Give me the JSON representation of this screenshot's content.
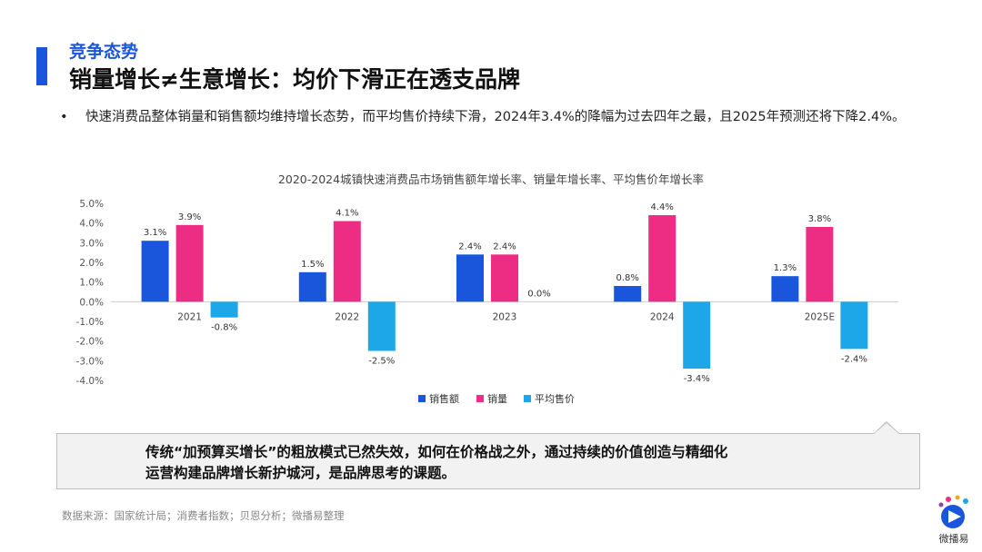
{
  "header": {
    "section": "竞争态势",
    "title": "销量增长≠生意增长：均价下滑正在透支品牌"
  },
  "bullet": {
    "marker": "•",
    "text": "快速消费品整体销量和销售额均维持增长态势，而平均售价持续下滑，2024年3.4%的降幅为过去四年之最，且2025年预测还将下降2.4%。"
  },
  "chart_data": {
    "type": "bar",
    "title": "2020-2024城镇快速消费品市场销售额年增长率、销量年增长率、平均售价年增长率",
    "categories": [
      "2021",
      "2022",
      "2023",
      "2024",
      "2025E"
    ],
    "series": [
      {
        "name": "销售额",
        "color": "#1a56db",
        "values": [
          3.1,
          1.5,
          2.4,
          0.8,
          1.3
        ],
        "labels": [
          "3.1%",
          "1.5%",
          "2.4%",
          "0.8%",
          "1.3%"
        ]
      },
      {
        "name": "销量",
        "color": "#ec2d83",
        "values": [
          3.9,
          4.1,
          2.4,
          4.4,
          3.8
        ],
        "labels": [
          "3.9%",
          "4.1%",
          "2.4%",
          "4.4%",
          "3.8%"
        ]
      },
      {
        "name": "平均售价",
        "color": "#1ea7e8",
        "values": [
          -0.8,
          -2.5,
          0.0,
          -3.4,
          -2.4
        ],
        "labels": [
          "-0.8%",
          "-2.5%",
          "0.0%",
          "-3.4%",
          "-2.4%"
        ]
      }
    ],
    "yticks": [
      "5.0%",
      "4.0%",
      "3.0%",
      "2.0%",
      "1.0%",
      "0.0%",
      "-1.0%",
      "-2.0%",
      "-3.0%",
      "-4.0%"
    ],
    "ylim": [
      -4,
      5
    ],
    "grid": false,
    "legend_position": "bottom"
  },
  "callout": {
    "line1": "传统“加预算买增长”的粗放模式已然失效，如何在价格战之外，通过持续的价值创造与精细化",
    "line2": "运营构建品牌增长新护城河，是品牌思考的课题。"
  },
  "footer": {
    "source": "数据来源：国家统计局；消费者指数；贝恩分析；微播易整理",
    "logo_text": "微播易"
  },
  "colors": {
    "accent": "#1a56db",
    "pink": "#ec2d83",
    "light_blue": "#1ea7e8"
  }
}
